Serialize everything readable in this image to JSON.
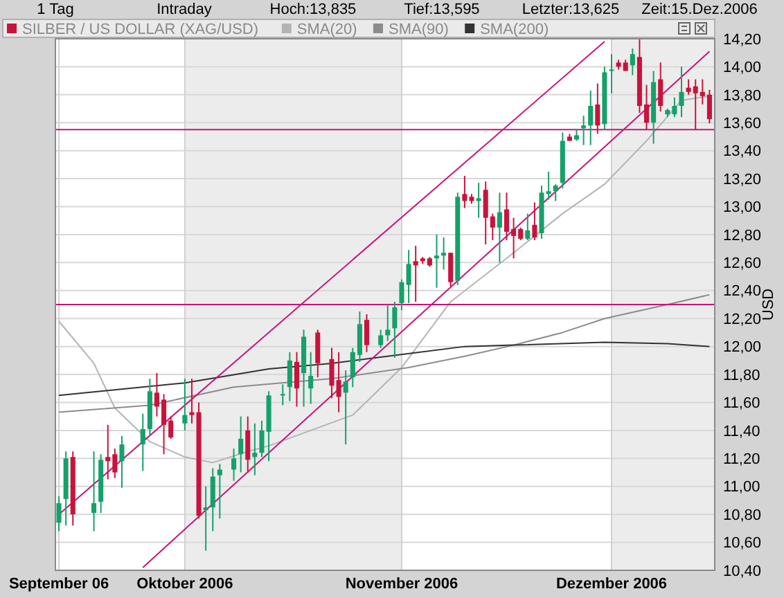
{
  "chart_data": {
    "type": "candlestick",
    "annotations": [
      "1 Tag",
      "Intraday",
      "Hoch:13,835",
      "Tief:13,595",
      "Letzter:13,625",
      "Zeit:15.Dez.2006"
    ],
    "ylabel": "USD",
    "legend": "top",
    "grid": true,
    "ylim": [
      10.4,
      14.2
    ],
    "xlim": [
      "2006-09-12T12:00",
      "2006-12-15T18:00"
    ],
    "yticks": [
      {
        "value": 10.4,
        "label": "10,40"
      },
      {
        "value": 10.6,
        "label": "10,60"
      },
      {
        "value": 10.8,
        "label": "10,80"
      },
      {
        "value": 11.0,
        "label": "11,00"
      },
      {
        "value": 11.2,
        "label": "11,20"
      },
      {
        "value": 11.4,
        "label": "11,40"
      },
      {
        "value": 11.6,
        "label": "11,60"
      },
      {
        "value": 11.8,
        "label": "11,80"
      },
      {
        "value": 12.0,
        "label": "12,00"
      },
      {
        "value": 12.2,
        "label": "12,20"
      },
      {
        "value": 12.4,
        "label": "12,40"
      },
      {
        "value": 12.6,
        "label": "12,60"
      },
      {
        "value": 12.8,
        "label": "12,80"
      },
      {
        "value": 13.0,
        "label": "13,00"
      },
      {
        "value": 13.2,
        "label": "13,20"
      },
      {
        "value": 13.4,
        "label": "13,40"
      },
      {
        "value": 13.6,
        "label": "13,60"
      },
      {
        "value": 13.8,
        "label": "13,80"
      },
      {
        "value": 14.0,
        "label": "14,00"
      },
      {
        "value": 14.2,
        "label": "14,20"
      }
    ],
    "xticks": [
      {
        "value": "2006-09-13",
        "label": "September 06"
      },
      {
        "value": "2006-10-01",
        "label": "Oktober 2006"
      },
      {
        "value": "2006-11-01",
        "label": "November 2006"
      },
      {
        "value": "2006-12-01",
        "label": "Dezember 2006"
      }
    ],
    "bands": [
      {
        "axis": "x",
        "from": "2006-10-01",
        "to": "2006-11-01",
        "color": "#ececec"
      },
      {
        "axis": "x",
        "from": "2006-12-01",
        "to": "2006-12-15T18:00",
        "color": "#ececec"
      }
    ],
    "ref_lines": [
      {
        "axis": "y",
        "value": 13.55,
        "color": "#c8147a"
      },
      {
        "axis": "y",
        "value": 12.3,
        "color": "#c8147a"
      }
    ],
    "x": [
      "2006-09-13",
      "2006-09-14",
      "2006-09-15",
      "2006-09-18",
      "2006-09-19",
      "2006-09-20",
      "2006-09-21",
      "2006-09-22",
      "2006-09-25",
      "2006-09-26",
      "2006-09-27",
      "2006-09-28",
      "2006-09-29",
      "2006-10-01",
      "2006-10-02",
      "2006-10-03",
      "2006-10-04",
      "2006-10-05",
      "2006-10-06",
      "2006-10-08",
      "2006-10-09",
      "2006-10-10",
      "2006-10-11",
      "2006-10-12",
      "2006-10-13",
      "2006-10-15",
      "2006-10-16",
      "2006-10-17",
      "2006-10-18",
      "2006-10-19",
      "2006-10-20",
      "2006-10-22",
      "2006-10-23",
      "2006-10-24",
      "2006-10-25",
      "2006-10-26",
      "2006-10-27",
      "2006-10-29",
      "2006-10-30",
      "2006-10-31",
      "2006-11-01",
      "2006-11-02",
      "2006-11-03",
      "2006-11-04",
      "2006-11-05",
      "2006-11-06",
      "2006-11-07",
      "2006-11-08",
      "2006-11-09",
      "2006-11-10",
      "2006-11-11",
      "2006-11-12",
      "2006-11-13",
      "2006-11-14",
      "2006-11-15",
      "2006-11-16",
      "2006-11-17",
      "2006-11-18",
      "2006-11-19",
      "2006-11-20",
      "2006-11-21",
      "2006-11-22",
      "2006-11-23",
      "2006-11-24",
      "2006-11-25",
      "2006-11-26",
      "2006-11-27",
      "2006-11-28",
      "2006-11-29",
      "2006-11-30",
      "2006-12-01",
      "2006-12-02",
      "2006-12-03",
      "2006-12-04",
      "2006-12-05",
      "2006-12-06",
      "2006-12-07",
      "2006-12-08",
      "2006-12-09",
      "2006-12-10",
      "2006-12-11",
      "2006-12-12",
      "2006-12-13",
      "2006-12-14",
      "2006-12-15"
    ],
    "series": [
      {
        "name": "SILBER / US DOLLAR (XAG/USD)",
        "color": "#c8133c",
        "colors": [
          "#16a06a",
          "#16a06a",
          "#c8133c",
          "#16a06a",
          "#16a06a",
          "#c8133c",
          "#c8133c",
          "#16a06a",
          "#16a06a",
          "#16a06a",
          "#c8133c",
          "#c8133c",
          "#c8133c",
          "#16a06a",
          "#c8133c",
          "#c8133c",
          "#16a06a",
          "#16a06a",
          "#16a06a",
          "#16a06a",
          "#16a06a",
          "#c8133c",
          "#16a06a",
          "#16a06a",
          "#16a06a",
          "#16a06a",
          "#16a06a",
          "#c8133c",
          "#16a06a",
          "#16a06a",
          "#c8133c",
          "#c8133c",
          "#c8133c",
          "#16a06a",
          "#16a06a",
          "#16a06a",
          "#c8133c",
          "#16a06a",
          "#16a06a",
          "#16a06a",
          "#16a06a",
          "#16a06a",
          "#c8133c",
          "#c8133c",
          "#c8133c",
          "#16a06a",
          "#16a06a",
          "#c8133c",
          "#16a06a",
          "#c8133c",
          "#c8133c",
          "#16a06a",
          "#c8133c",
          "#c8133c",
          "#16a06a",
          "#c8133c",
          "#c8133c",
          "#c8133c",
          "#16a06a",
          "#c8133c",
          "#16a06a",
          "#16a06a",
          "#16a06a",
          "#16a06a",
          "#c8133c",
          "#16a06a",
          "#16a06a",
          "#16a06a",
          "#c8133c",
          "#16a06a",
          "#16a06a",
          "#c8133c",
          "#c8133c",
          "#16a06a",
          "#c8133c",
          "#c8133c",
          "#16a06a",
          "#c8133c",
          "#16a06a",
          "#16a06a",
          "#16a06a",
          "#c8133c",
          "#c8133c",
          "#c8133c",
          "#c8133c"
        ],
        "ohlc": [
          [
            10.74,
            10.93,
            10.68,
            10.88
          ],
          [
            10.91,
            11.25,
            10.72,
            11.2
          ],
          [
            11.21,
            11.25,
            10.72,
            10.8
          ],
          [
            10.81,
            11.25,
            10.68,
            10.88
          ],
          [
            10.89,
            11.23,
            10.81,
            11.19
          ],
          [
            11.21,
            11.44,
            11.05,
            11.18
          ],
          [
            11.23,
            11.27,
            11.06,
            11.1
          ],
          [
            11.18,
            11.36,
            10.99,
            11.3
          ],
          [
            11.3,
            11.52,
            11.11,
            11.41
          ],
          [
            11.41,
            11.77,
            11.36,
            11.68
          ],
          [
            11.67,
            11.81,
            11.5,
            11.57
          ],
          [
            11.62,
            11.66,
            11.23,
            11.44
          ],
          [
            11.47,
            11.5,
            11.34,
            11.35
          ],
          [
            11.45,
            11.77,
            11.4,
            11.51
          ],
          [
            11.53,
            11.77,
            11.45,
            11.51
          ],
          [
            11.53,
            11.6,
            10.77,
            10.79
          ],
          [
            10.83,
            11.0,
            10.54,
            10.85
          ],
          [
            10.85,
            11.13,
            10.68,
            11.07
          ],
          [
            11.08,
            11.16,
            10.77,
            11.12
          ],
          [
            11.12,
            11.27,
            11.04,
            11.2
          ],
          [
            11.23,
            11.5,
            11.1,
            11.34
          ],
          [
            11.4,
            11.5,
            11.1,
            11.19
          ],
          [
            11.21,
            11.45,
            11.08,
            11.24
          ],
          [
            11.24,
            11.47,
            11.21,
            11.4
          ],
          [
            11.39,
            11.68,
            11.18,
            11.65
          ],
          [
            11.65,
            11.73,
            11.58,
            11.66
          ],
          [
            11.71,
            11.96,
            11.61,
            11.9
          ],
          [
            11.89,
            11.96,
            11.57,
            11.7
          ],
          [
            11.81,
            12.12,
            11.57,
            12.07
          ],
          [
            11.7,
            11.96,
            11.59,
            11.79
          ],
          [
            12.1,
            12.12,
            11.78,
            11.88
          ],
          [
            11.91,
            11.99,
            11.63,
            11.72
          ],
          [
            11.76,
            11.96,
            11.53,
            11.64
          ],
          [
            11.67,
            11.83,
            11.3,
            11.75
          ],
          [
            11.78,
            11.99,
            11.71,
            11.96
          ],
          [
            11.94,
            12.25,
            11.89,
            12.16
          ],
          [
            12.19,
            12.23,
            11.96,
            12.01
          ],
          [
            12.01,
            12.12,
            11.99,
            12.08
          ],
          [
            12.08,
            12.3,
            12.04,
            12.12
          ],
          [
            12.13,
            12.32,
            11.92,
            12.28
          ],
          [
            12.31,
            12.48,
            12.26,
            12.46
          ],
          [
            12.44,
            12.69,
            12.31,
            12.59
          ],
          [
            12.61,
            12.72,
            12.32,
            12.58
          ],
          [
            12.63,
            12.64,
            12.59,
            12.61
          ],
          [
            12.63,
            12.64,
            12.57,
            12.58
          ],
          [
            12.63,
            12.8,
            12.42,
            12.65
          ],
          [
            12.65,
            12.78,
            12.55,
            12.67
          ],
          [
            12.67,
            12.67,
            12.43,
            12.46
          ],
          [
            12.47,
            13.1,
            12.44,
            13.07
          ],
          [
            13.09,
            13.22,
            12.99,
            13.04
          ],
          [
            13.07,
            13.09,
            13.02,
            13.04
          ],
          [
            13.04,
            13.17,
            12.92,
            13.06
          ],
          [
            13.12,
            13.18,
            12.73,
            12.92
          ],
          [
            12.93,
            12.95,
            12.76,
            12.85
          ],
          [
            12.85,
            13.1,
            12.6,
            12.96
          ],
          [
            12.98,
            13.1,
            12.76,
            12.82
          ],
          [
            12.84,
            12.92,
            12.63,
            12.79
          ],
          [
            12.84,
            12.85,
            12.76,
            12.77
          ],
          [
            12.77,
            12.95,
            12.76,
            12.83
          ],
          [
            12.87,
            13.03,
            12.76,
            12.78
          ],
          [
            12.81,
            13.15,
            12.77,
            13.1
          ],
          [
            13.09,
            13.25,
            13.05,
            13.11
          ],
          [
            13.11,
            13.16,
            13.04,
            13.15
          ],
          [
            13.17,
            13.53,
            13.13,
            13.47
          ],
          [
            13.5,
            13.52,
            13.47,
            13.47
          ],
          [
            13.48,
            13.55,
            13.47,
            13.51
          ],
          [
            13.56,
            13.65,
            13.44,
            13.58
          ],
          [
            13.58,
            13.83,
            13.44,
            13.72
          ],
          [
            13.73,
            13.88,
            13.52,
            13.58
          ],
          [
            13.59,
            14.0,
            13.55,
            13.96
          ],
          [
            13.97,
            14.09,
            13.81,
            13.98
          ],
          [
            14.03,
            14.05,
            13.98,
            14.0
          ],
          [
            14.03,
            14.05,
            13.97,
            13.97
          ],
          [
            14.01,
            14.13,
            13.94,
            14.09
          ],
          [
            14.07,
            14.2,
            13.67,
            13.72
          ],
          [
            13.73,
            13.87,
            13.55,
            13.6
          ],
          [
            13.6,
            13.97,
            13.45,
            13.89
          ],
          [
            13.91,
            14.03,
            13.68,
            13.72
          ],
          [
            13.66,
            13.7,
            13.64,
            13.69
          ],
          [
            13.66,
            13.78,
            13.64,
            13.72
          ],
          [
            13.72,
            14.0,
            13.64,
            13.82
          ],
          [
            13.85,
            13.91,
            13.8,
            13.82
          ],
          [
            13.86,
            13.91,
            13.55,
            13.81
          ],
          [
            13.82,
            13.91,
            13.73,
            13.79
          ],
          [
            13.8,
            13.835,
            13.595,
            13.625
          ]
        ]
      },
      {
        "type": "line",
        "name": "SMA(20)",
        "color": "#b4b4b4",
        "x": [
          "2006-09-13",
          "2006-09-18",
          "2006-09-21",
          "2006-09-26",
          "2006-10-01",
          "2006-10-05",
          "2006-10-10",
          "2006-10-13",
          "2006-10-25",
          "2006-11-01",
          "2006-11-08",
          "2006-11-17",
          "2006-11-24",
          "2006-11-30",
          "2006-12-06",
          "2006-12-11",
          "2006-12-15"
        ],
        "values": [
          12.18,
          11.88,
          11.56,
          11.32,
          11.21,
          11.17,
          11.25,
          11.29,
          11.51,
          11.85,
          12.32,
          12.67,
          12.95,
          13.16,
          13.47,
          13.76,
          13.79
        ]
      },
      {
        "type": "line",
        "name": "SMA(90)",
        "color": "#8c8c8c",
        "x": [
          "2006-09-13",
          "2006-09-26",
          "2006-10-08",
          "2006-10-22",
          "2006-11-02",
          "2006-11-10",
          "2006-11-17",
          "2006-11-24",
          "2006-11-30",
          "2006-12-09",
          "2006-12-15"
        ],
        "values": [
          11.53,
          11.58,
          11.71,
          11.77,
          11.85,
          11.93,
          12.01,
          12.1,
          12.2,
          12.3,
          12.37
        ]
      },
      {
        "type": "line",
        "name": "SMA(200)",
        "color": "#333333",
        "x": [
          "2006-09-13",
          "2006-10-01",
          "2006-10-13",
          "2006-10-22",
          "2006-11-10",
          "2006-11-17",
          "2006-11-30",
          "2006-12-09",
          "2006-12-15"
        ],
        "values": [
          11.65,
          11.74,
          11.84,
          11.88,
          12.0,
          12.01,
          12.03,
          12.02,
          12.0
        ]
      },
      {
        "type": "line",
        "color": "#c8147a",
        "x": [
          "2006-09-13",
          "2006-11-30"
        ],
        "values": [
          10.8,
          14.18
        ]
      },
      {
        "type": "line",
        "color": "#c8147a",
        "x": [
          "2006-09-25",
          "2006-12-15"
        ],
        "values": [
          10.42,
          14.11
        ]
      }
    ]
  }
}
